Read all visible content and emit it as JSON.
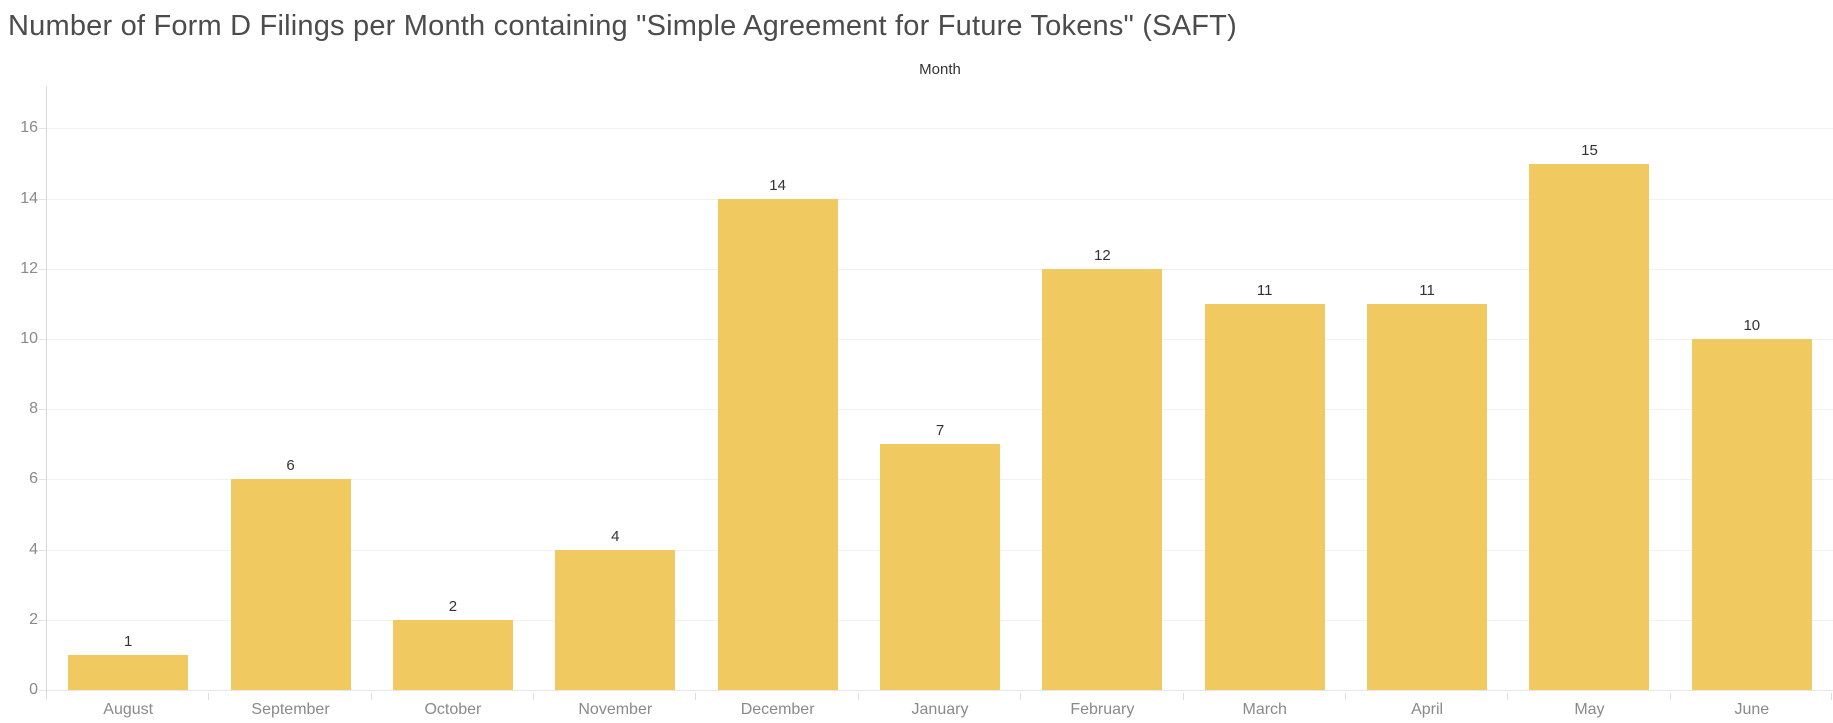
{
  "title": "Number of Form D Filings per Month containing \"Simple Agreement for Future Tokens\" (SAFT)",
  "chart_data": {
    "type": "bar",
    "title": "Number of Form D Filings per Month containing \"Simple Agreement for Future Tokens\" (SAFT)",
    "xlabel": "Month",
    "ylabel": "",
    "categories": [
      "August",
      "September",
      "October",
      "November",
      "December",
      "January",
      "February",
      "March",
      "April",
      "May",
      "June"
    ],
    "values": [
      1,
      6,
      2,
      4,
      14,
      7,
      12,
      11,
      11,
      15,
      10
    ],
    "value_labels": [
      "1",
      "6",
      "2",
      "4",
      "14",
      "7",
      "12",
      "11",
      "11",
      "15",
      "10"
    ],
    "yticks": [
      0,
      2,
      4,
      6,
      8,
      10,
      12,
      14,
      16
    ],
    "ylim": [
      0,
      17.1
    ],
    "grid": "horizontal",
    "legend": "none",
    "bar_color": "#f0ca60",
    "gridline_color": "#f1f1f1",
    "axis_line_color": "#d9d9d9",
    "tick_label_color": "#8a8a8a",
    "value_label_color": "#333333",
    "title_color": "#4c4c4c"
  }
}
